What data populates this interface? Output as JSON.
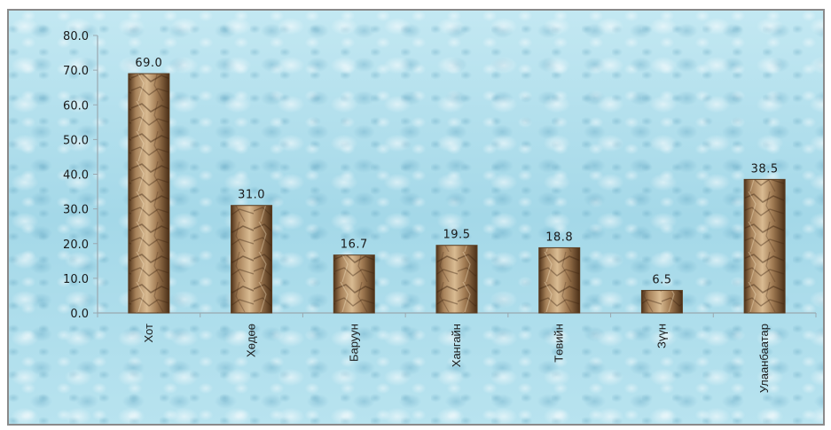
{
  "chart_data": {
    "type": "bar",
    "categories": [
      "Хот",
      "Хөдөө",
      "Баруун",
      "Хангайн",
      "Төвийн",
      "Зүүн",
      "Улаанбаатар"
    ],
    "values": [
      69.0,
      31.0,
      16.7,
      19.5,
      18.8,
      6.5,
      38.5
    ],
    "data_labels": [
      "69.0",
      "31.0",
      "16.7",
      "19.5",
      "18.8",
      "6.5",
      "38.5"
    ],
    "y_ticks": [
      "0.0",
      "10.0",
      "20.0",
      "30.0",
      "40.0",
      "50.0",
      "60.0",
      "70.0",
      "80.0"
    ],
    "ylim": [
      0,
      80
    ],
    "title": "",
    "xlabel": "",
    "ylabel": "",
    "grid": false,
    "legend": "none",
    "colors": {
      "bar_light": "#d9bb92",
      "bar_mid": "#a7825a",
      "bar_dark": "#5b3d22",
      "axis": "#9aa8b0",
      "background": "#a9dcea"
    }
  }
}
